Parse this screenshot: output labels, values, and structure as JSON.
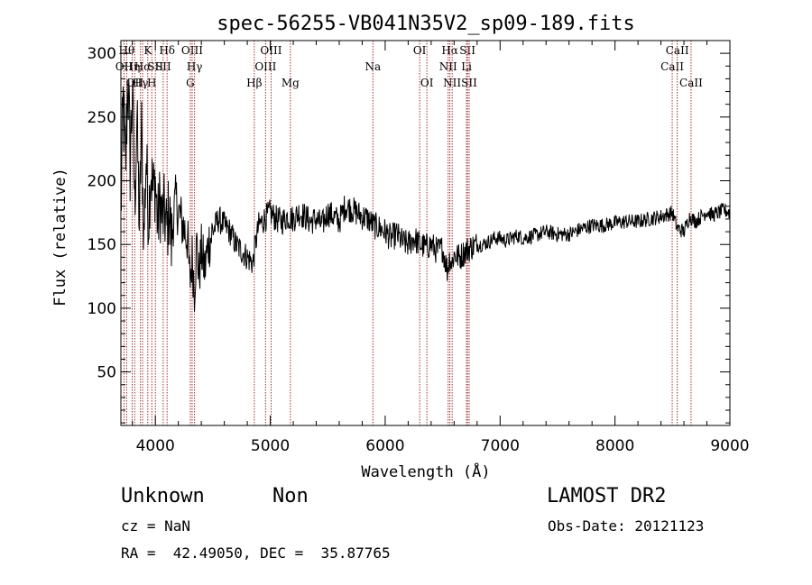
{
  "chart_data": {
    "type": "line",
    "title": "spec-56255-VB041N35V2_sp09-189.fits",
    "xlabel": "Wavelength (Å)",
    "ylabel": "Flux (relative)",
    "xlim": [
      3700,
      9000
    ],
    "ylim": [
      8,
      310
    ],
    "xticks": [
      4000,
      5000,
      6000,
      7000,
      8000,
      9000
    ],
    "yticks": [
      50,
      100,
      150,
      200,
      250,
      300
    ],
    "line_color": "#000000",
    "marker_color": "#a03030",
    "series": [
      {
        "x": [
          3700,
          3720,
          3740,
          3760,
          3780,
          3800,
          3820,
          3840,
          3860,
          3880,
          3900,
          3920,
          3940,
          3960,
          3980,
          4000,
          4020,
          4040,
          4060,
          4080,
          4100,
          4120,
          4140,
          4160,
          4180,
          4200,
          4220,
          4240,
          4260,
          4280,
          4300,
          4320,
          4340,
          4360,
          4380,
          4400,
          4430,
          4460,
          4500,
          4550,
          4600,
          4650,
          4700,
          4750,
          4800,
          4850,
          4870,
          4900,
          4950,
          5000,
          5050,
          5100,
          5150,
          5200,
          5250,
          5300,
          5350,
          5400,
          5450,
          5500,
          5550,
          5600,
          5650,
          5700,
          5750,
          5800,
          5850,
          5900,
          5950,
          6000,
          6050,
          6100,
          6150,
          6200,
          6250,
          6300,
          6350,
          6400,
          6450,
          6500,
          6540,
          6563,
          6580,
          6600,
          6650,
          6700,
          6750,
          6800,
          6850,
          6900,
          6950,
          7000,
          7050,
          7100,
          7150,
          7200,
          7300,
          7400,
          7500,
          7600,
          7700,
          7800,
          7900,
          8000,
          8100,
          8200,
          8300,
          8400,
          8500,
          8540,
          8600,
          8650,
          8700,
          8750,
          8800,
          8850,
          8900,
          8950,
          9000
        ],
        "y": [
          175,
          260,
          205,
          285,
          215,
          270,
          180,
          250,
          165,
          240,
          155,
          220,
          170,
          210,
          190,
          200,
          165,
          185,
          170,
          175,
          160,
          180,
          150,
          175,
          185,
          175,
          170,
          165,
          160,
          155,
          120,
          140,
          115,
          150,
          125,
          145,
          130,
          150,
          160,
          170,
          165,
          160,
          150,
          145,
          140,
          135,
          150,
          165,
          170,
          175,
          170,
          168,
          172,
          170,
          175,
          172,
          168,
          170,
          165,
          175,
          172,
          168,
          180,
          178,
          175,
          172,
          170,
          165,
          163,
          160,
          155,
          158,
          152,
          150,
          155,
          150,
          148,
          150,
          145,
          147,
          130,
          140,
          135,
          142,
          140,
          145,
          148,
          150,
          150,
          152,
          155,
          155,
          153,
          155,
          157,
          155,
          157,
          160,
          158,
          158,
          162,
          165,
          165,
          167,
          168,
          168,
          170,
          172,
          175,
          163,
          160,
          172,
          168,
          172,
          176,
          173,
          175,
          177,
          175
        ]
      }
    ],
    "lines": [
      {
        "w": 3727,
        "label": "OII",
        "row": 1
      },
      {
        "w": 3750,
        "label": "Hθ",
        "row": 0
      },
      {
        "w": 3798,
        "label": "Hη",
        "row": 1
      },
      {
        "w": 3820,
        "label": "OII",
        "row": 2
      },
      {
        "w": 3870,
        "label": "Hγ",
        "row": 2
      },
      {
        "w": 3889,
        "label": "Hα",
        "row": 1
      },
      {
        "w": 3934,
        "label": "K",
        "row": 0
      },
      {
        "w": 3969,
        "label": "H",
        "row": 2
      },
      {
        "w": 4000,
        "label": "SII",
        "row": 1
      },
      {
        "w": 4068,
        "label": "SII",
        "row": 1
      },
      {
        "w": 4102,
        "label": "Hδ",
        "row": 0
      },
      {
        "w": 4304,
        "label": "G",
        "row": 2
      },
      {
        "w": 4320,
        "label": "OIII",
        "row": 0
      },
      {
        "w": 4341,
        "label": "Hγ",
        "row": 1
      },
      {
        "w": 4861,
        "label": "Hβ",
        "row": 2
      },
      {
        "w": 4959,
        "label": "OIII",
        "row": 1
      },
      {
        "w": 5007,
        "label": "OIII",
        "row": 0
      },
      {
        "w": 5175,
        "label": "Mg",
        "row": 2
      },
      {
        "w": 5893,
        "label": "Na",
        "row": 1
      },
      {
        "w": 6300,
        "label": "OI",
        "row": 0
      },
      {
        "w": 6363,
        "label": "OI",
        "row": 2
      },
      {
        "w": 6548,
        "label": "NII",
        "row": 1
      },
      {
        "w": 6563,
        "label": "Hα",
        "row": 0
      },
      {
        "w": 6583,
        "label": "NII",
        "row": 2
      },
      {
        "w": 6708,
        "label": "Li",
        "row": 1
      },
      {
        "w": 6716,
        "label": "SII",
        "row": 0
      },
      {
        "w": 6731,
        "label": "SII",
        "row": 2
      },
      {
        "w": 8498,
        "label": "CaII",
        "row": 1
      },
      {
        "w": 8542,
        "label": "CaII",
        "row": 0
      },
      {
        "w": 8662,
        "label": "CaII",
        "row": 2
      }
    ]
  },
  "footer": {
    "object_class": "Unknown",
    "subclass": "Non",
    "survey": "LAMOST DR2",
    "cz": "cz = NaN",
    "obs_date": "Obs-Date: 20121123",
    "coords": "RA =  42.49050, DEC =  35.87765"
  }
}
